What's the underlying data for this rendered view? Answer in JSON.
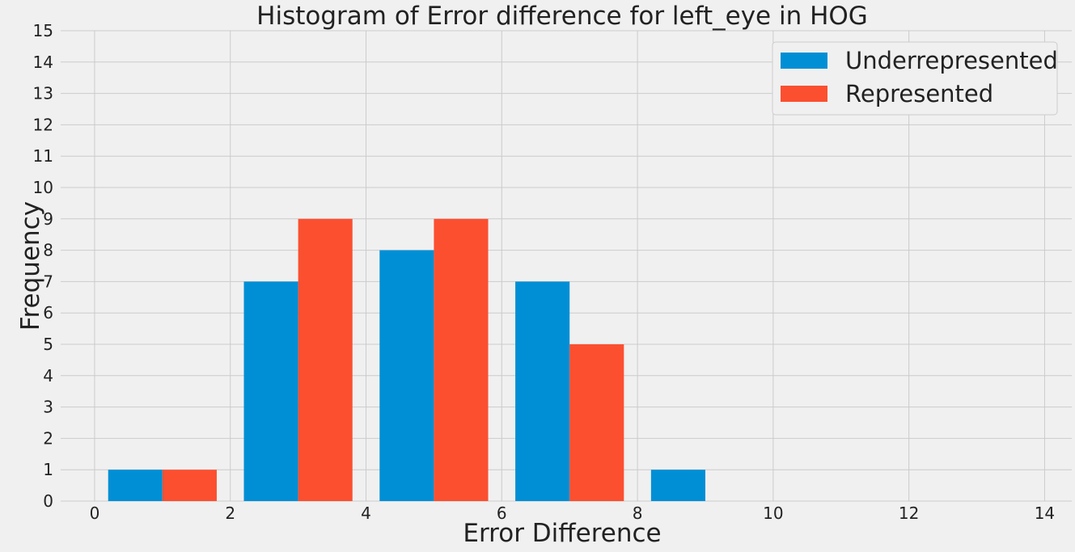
{
  "chart_data": {
    "type": "bar",
    "title": "Histogram of Error difference for left_eye in HOG",
    "xlabel": "Error Difference",
    "ylabel": "Frequency",
    "xlim": [
      -0.5,
      14.4
    ],
    "ylim": [
      0,
      15
    ],
    "xticks": [
      "0",
      "2",
      "4",
      "6",
      "8",
      "10",
      "12",
      "14"
    ],
    "yticks": [
      "0",
      "1",
      "2",
      "3",
      "4",
      "5",
      "6",
      "7",
      "8",
      "9",
      "10",
      "11",
      "12",
      "13",
      "14",
      "15"
    ],
    "bins": [
      0.2,
      2.2,
      4.2,
      6.2,
      8.2
    ],
    "bar_width": 0.8,
    "series": [
      {
        "name": "Underrepresented",
        "color": "#008fd5",
        "values": [
          1,
          7,
          8,
          7,
          1
        ]
      },
      {
        "name": "Represented",
        "color": "#fc4f30",
        "values": [
          1,
          9,
          9,
          5,
          0
        ]
      }
    ],
    "grid": true,
    "legend_position": "top-right"
  }
}
